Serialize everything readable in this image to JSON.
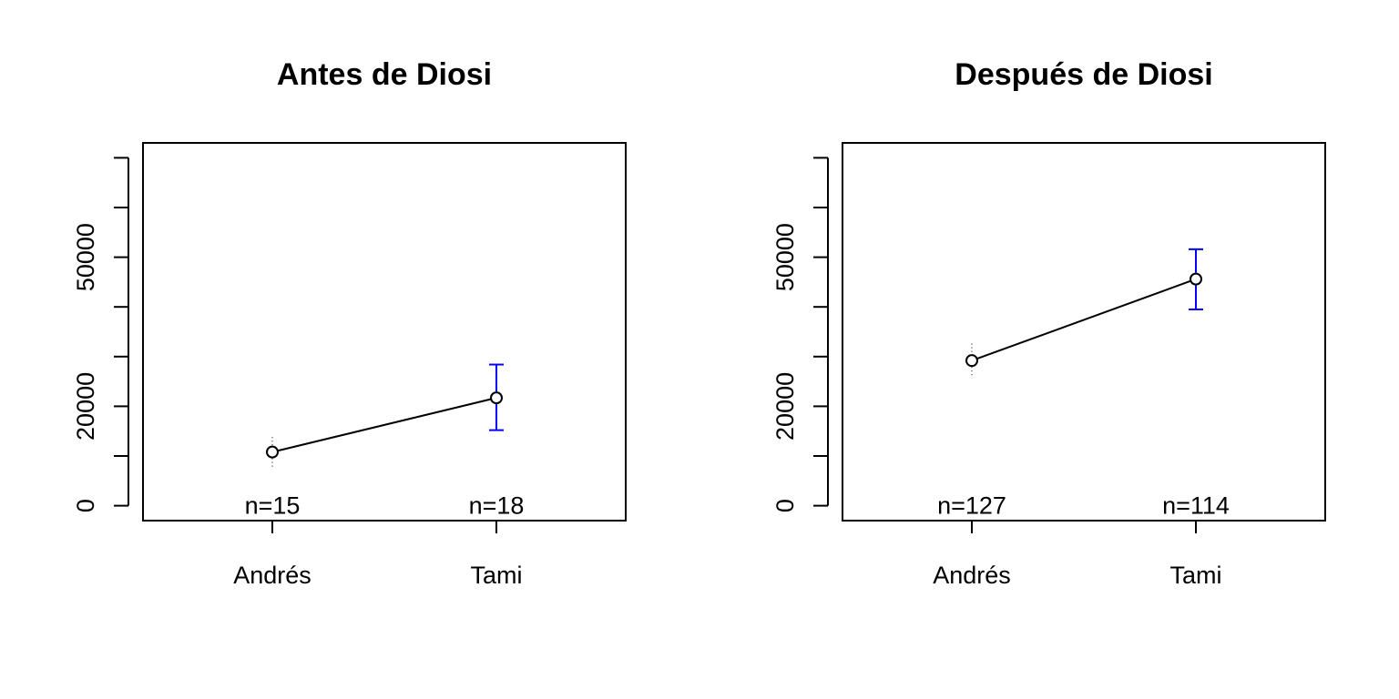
{
  "chart_data": [
    {
      "type": "line",
      "title": "Antes de Diosi",
      "xlabel": "",
      "ylabel": "",
      "categories": [
        "Andrés",
        "Tami"
      ],
      "ylim": [
        -3000,
        73000
      ],
      "yticks": [
        0,
        10000,
        20000,
        30000,
        40000,
        50000,
        60000,
        70000
      ],
      "ytick_labels": {
        "0": "0",
        "20000": "20000",
        "50000": "50000"
      },
      "series": [
        {
          "values": [
            10800,
            21700
          ],
          "error_low": [
            7500,
            15200
          ],
          "error_high": [
            13800,
            28400
          ],
          "error_color": [
            "#000000",
            "#0000ff"
          ]
        }
      ],
      "n_labels": [
        "n=15",
        "n=18"
      ],
      "grid": false
    },
    {
      "type": "line",
      "title": "Después de Diosi",
      "xlabel": "",
      "ylabel": "",
      "categories": [
        "Andrés",
        "Tami"
      ],
      "ylim": [
        -3000,
        73000
      ],
      "yticks": [
        0,
        10000,
        20000,
        30000,
        40000,
        50000,
        60000,
        70000
      ],
      "ytick_labels": {
        "0": "0",
        "20000": "20000",
        "50000": "50000"
      },
      "series": [
        {
          "values": [
            29200,
            45600
          ],
          "error_low": [
            25700,
            39500
          ],
          "error_high": [
            32600,
            51600
          ],
          "error_color": [
            "#000000",
            "#0000ff"
          ]
        }
      ],
      "n_labels": [
        "n=127",
        "n=114"
      ],
      "grid": false
    }
  ]
}
